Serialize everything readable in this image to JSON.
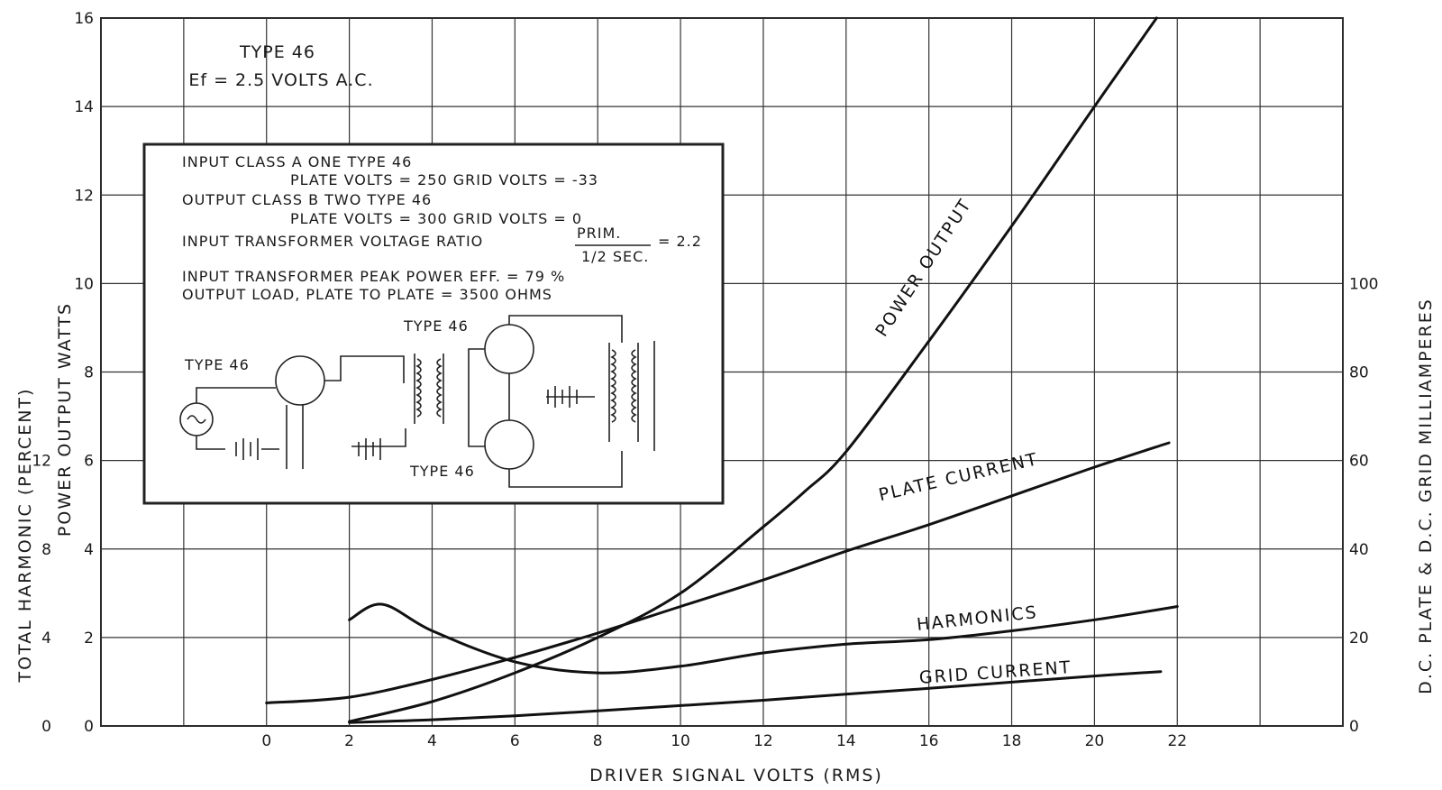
{
  "chart_data": {
    "type": "line",
    "title": "TYPE 46",
    "subtitle": "Ef = 2.5 VOLTS A.C.",
    "xlabel": "DRIVER SIGNAL VOLTS (RMS)",
    "ylabel_left_outer": "TOTAL HARMONIC (PERCENT)",
    "ylabel_left_inner": "POWER OUTPUT WATTS",
    "ylabel_right": "D.C. PLATE & D.C. GRID MILLIAMPERES",
    "xlim": [
      -4,
      26
    ],
    "ylim_watts": [
      0,
      16
    ],
    "ylim_ma": [
      0,
      160
    ],
    "x_ticks": [
      "0",
      "2",
      "4",
      "6",
      "8",
      "10",
      "12",
      "14",
      "16",
      "18",
      "20",
      "22"
    ],
    "y_ticks_watts": [
      "0",
      "2",
      "4",
      "6",
      "8",
      "10",
      "12",
      "14",
      "16"
    ],
    "y_ticks_harmonic": [
      "0",
      "4",
      "8",
      "12"
    ],
    "y_ticks_ma": [
      "0",
      "20",
      "40",
      "60",
      "80",
      "100"
    ],
    "grid": true,
    "series": [
      {
        "name": "POWER OUTPUT",
        "axis": "watts",
        "x": [
          2,
          4,
          6,
          8,
          10,
          12,
          13,
          14,
          16,
          18,
          20,
          21.5
        ],
        "y": [
          0.1,
          0.55,
          1.2,
          2.0,
          3.0,
          4.5,
          5.3,
          6.2,
          8.7,
          11.3,
          14.0,
          16.0
        ]
      },
      {
        "name": "PLATE CURRENT",
        "axis": "ma",
        "x": [
          0,
          2,
          4,
          6,
          8,
          10,
          12,
          14,
          16,
          18,
          20,
          21.8
        ],
        "y": [
          5.2,
          6.5,
          10.5,
          15.5,
          21,
          27,
          33,
          39.5,
          45.5,
          52,
          58.5,
          64
        ]
      },
      {
        "name": "HARMONICS",
        "axis": "harmonic_percent",
        "x": [
          2,
          2.8,
          4,
          6,
          8,
          10,
          12,
          14,
          16,
          18,
          20,
          22
        ],
        "y": [
          4.8,
          5.5,
          4.3,
          2.9,
          2.4,
          2.7,
          3.3,
          3.7,
          3.9,
          4.3,
          4.8,
          5.4
        ]
      },
      {
        "name": "GRID CURRENT",
        "axis": "ma",
        "x": [
          2,
          4,
          6,
          8,
          10,
          12,
          14,
          16,
          18,
          20,
          21.6
        ],
        "y": [
          0.8,
          1.4,
          2.3,
          3.4,
          4.6,
          5.8,
          7.2,
          8.5,
          9.9,
          11.3,
          12.3
        ]
      }
    ],
    "annotations": [
      "INPUT CLASS A ONE TYPE 46",
      "PLATE VOLTS = 250   GRID VOLTS = -33",
      "OUTPUT CLASS B TWO TYPE 46",
      "PLATE VOLTS = 300   GRID VOLTS = 0",
      "INPUT TRANSFORMER VOLTAGE RATIO",
      "PRIM.",
      "1/2 SEC.",
      "= 2.2",
      "INPUT TRANSFORMER PEAK POWER EFF. = 79 %",
      "OUTPUT LOAD, PLATE TO PLATE = 3500 OHMS",
      "TYPE 46",
      "TYPE 46",
      "TYPE 46"
    ]
  }
}
